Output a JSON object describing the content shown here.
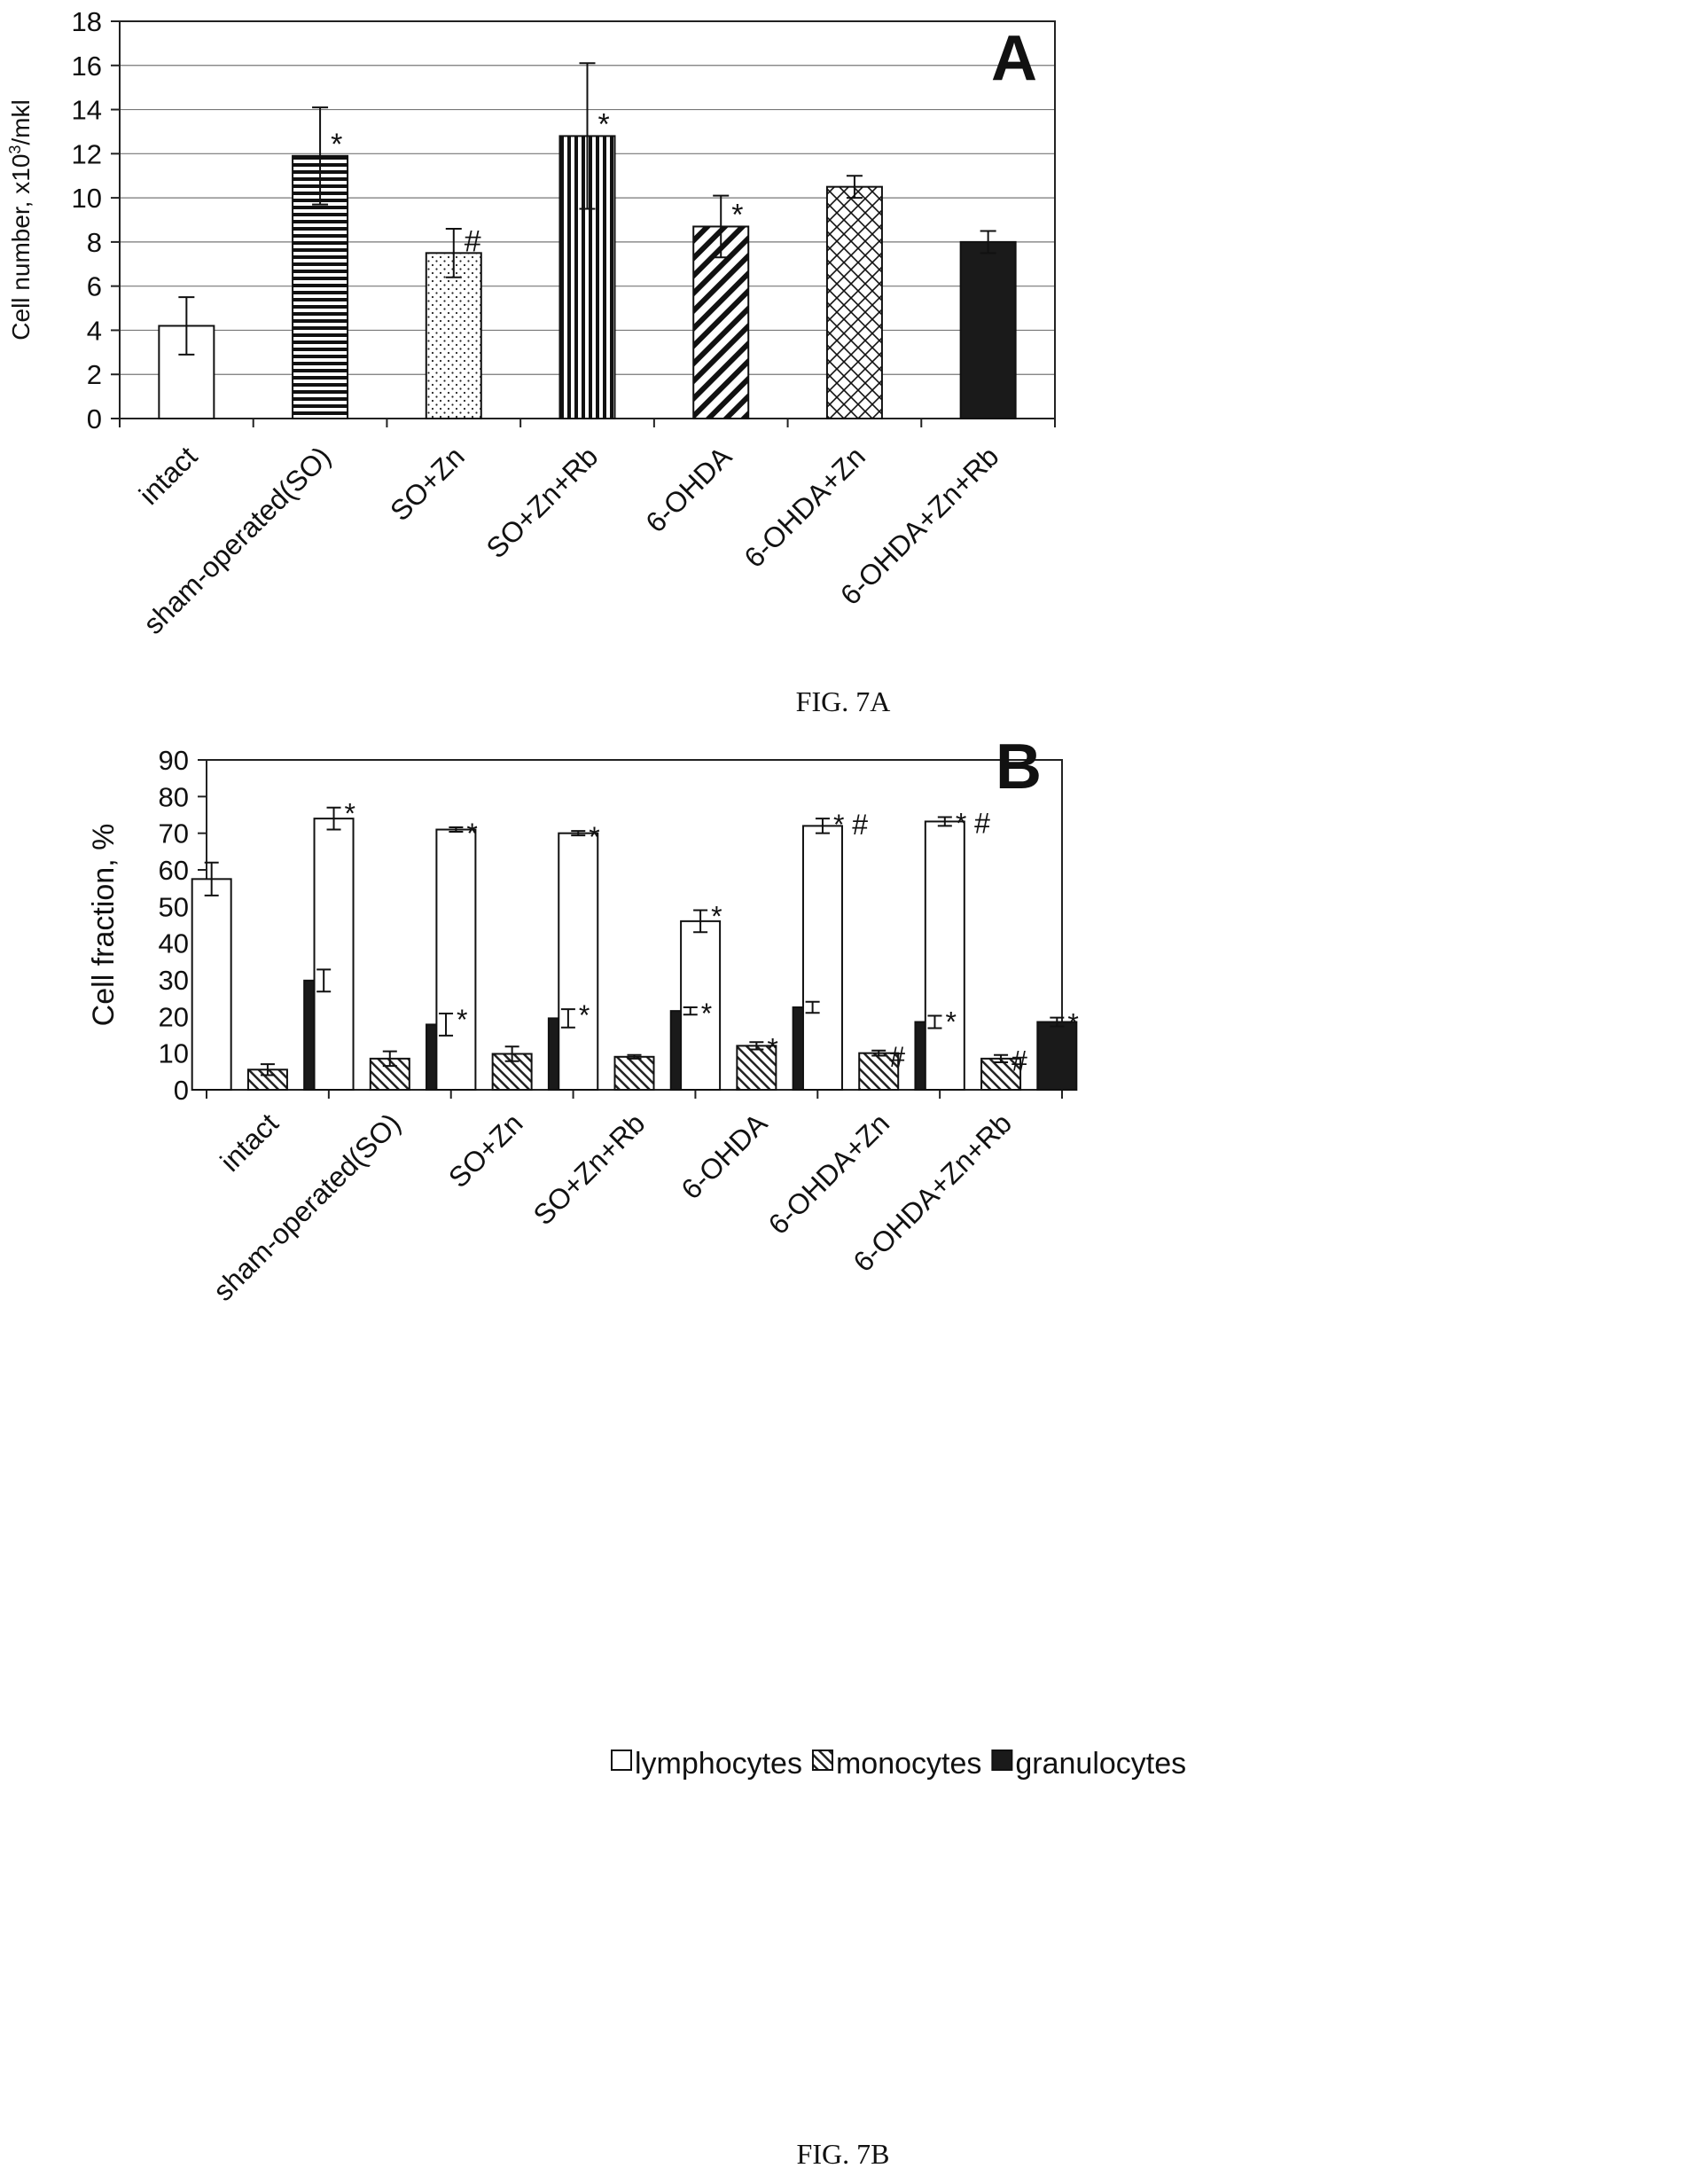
{
  "chart_data": [
    {
      "type": "bar",
      "panel_letter": "A",
      "caption": "FIG. 7A",
      "ylabel": "Cell number, x10",
      "ylabel_sup": "3",
      "ylabel_tail": "/mkl",
      "ylim": [
        0,
        18
      ],
      "ytick_step": 2,
      "grid": true,
      "categories": [
        "intact",
        "sham-operated(SO)",
        "SO+Zn",
        "SO+Zn+Rb",
        "6-OHDA",
        "6-OHDA+Zn",
        "6-OHDA+Zn+Rb"
      ],
      "values": [
        4.2,
        11.9,
        7.5,
        12.8,
        8.7,
        10.5,
        8.0
      ],
      "errors": [
        1.3,
        2.2,
        1.1,
        3.3,
        1.4,
        0.5,
        0.5
      ],
      "annotations": [
        "",
        "*",
        "#",
        "*",
        "*",
        "",
        ""
      ],
      "patterns": [
        "white",
        "horizontal",
        "dots",
        "vertical",
        "diagonal",
        "crosshatch",
        "solid"
      ]
    },
    {
      "type": "bar",
      "panel_letter": "B",
      "caption": "FIG. 7B",
      "ylabel": "Cell fraction, %",
      "ylim": [
        0,
        90
      ],
      "ytick_step": 10,
      "grid": false,
      "legend_position": "bottom",
      "categories": [
        "intact",
        "sham-operated(SO)",
        "SO+Zn",
        "SO+Zn+Rb",
        "6-OHDA",
        "6-OHDA+Zn",
        "6-OHDA+Zn+Rb"
      ],
      "series": [
        {
          "name": "lymphocytes",
          "pattern": "white",
          "values": [
            57.5,
            74.0,
            71.0,
            70.0,
            46.0,
            72.0,
            73.2
          ],
          "errors": [
            4.5,
            3.0,
            0.6,
            0.6,
            3.0,
            2.0,
            1.2
          ],
          "annotations": [
            "",
            "*",
            "*",
            "*",
            "*",
            "* #",
            "* #"
          ]
        },
        {
          "name": "monocytes",
          "pattern": "diagonal",
          "values": [
            5.5,
            8.5,
            9.8,
            9.0,
            12.0,
            10.0,
            8.5
          ],
          "errors": [
            1.5,
            2.0,
            2.0,
            0.5,
            1.0,
            0.7,
            1.0
          ],
          "annotations": [
            "",
            "",
            "",
            "",
            "*",
            "#",
            "#"
          ]
        },
        {
          "name": "granulocytes",
          "pattern": "solid",
          "values": [
            29.8,
            17.8,
            19.5,
            21.5,
            22.5,
            18.5,
            18.5
          ],
          "errors": [
            3.0,
            3.0,
            2.5,
            1.0,
            1.5,
            1.7,
            1.2
          ],
          "annotations": [
            "",
            "*",
            "*",
            "*",
            "",
            "*",
            "*"
          ]
        }
      ]
    }
  ]
}
